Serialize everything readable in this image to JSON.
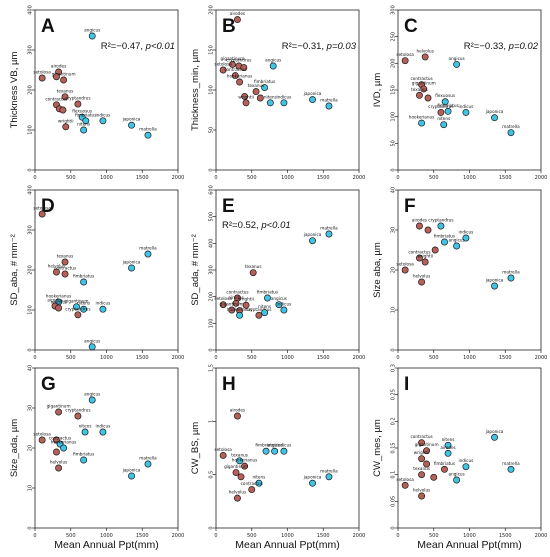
{
  "colors": {
    "group_brown": "#b5615a",
    "group_cyan": "#3fc4e6",
    "stroke": "#1a1a1a"
  },
  "chart_data": [
    {
      "type": "scatter",
      "letter": "A",
      "ylabel": "Thickness VB, µm",
      "xlabel": "",
      "xlim": [
        0,
        2000
      ],
      "ylim": [
        0,
        400
      ],
      "xticks": [
        0,
        500,
        1000,
        1500,
        2000
      ],
      "yticks": [
        0,
        100,
        200,
        300,
        400
      ],
      "annotation": {
        "r2": "R²=−0.47",
        "p": "p<0.01"
      },
      "points": [
        {
          "x": 800,
          "y": 335,
          "g": "cyan",
          "label": "angicus"
        },
        {
          "x": 330,
          "y": 245,
          "g": "brown",
          "label": "airodes"
        },
        {
          "x": 400,
          "y": 225,
          "g": "brown",
          "label": "gigantinum"
        },
        {
          "x": 100,
          "y": 230,
          "g": "brown",
          "label": "setolosa"
        },
        {
          "x": 300,
          "y": 233,
          "g": "brown",
          "label": ""
        },
        {
          "x": 420,
          "y": 183,
          "g": "brown",
          "label": "texanus"
        },
        {
          "x": 600,
          "y": 165,
          "g": "brown",
          "label": "cryptandrus"
        },
        {
          "x": 300,
          "y": 163,
          "g": "brown",
          "label": "contractus"
        },
        {
          "x": 340,
          "y": 153,
          "g": "brown",
          "label": ""
        },
        {
          "x": 390,
          "y": 150,
          "g": "brown",
          "label": ""
        },
        {
          "x": 660,
          "y": 132,
          "g": "cyan",
          "label": "flexuosus"
        },
        {
          "x": 710,
          "y": 123,
          "g": "cyan",
          "label": "fimbriatus"
        },
        {
          "x": 950,
          "y": 123,
          "g": "cyan",
          "label": "indicus"
        },
        {
          "x": 680,
          "y": 100,
          "g": "cyan",
          "label": "nitens"
        },
        {
          "x": 430,
          "y": 108,
          "g": "brown",
          "label": "wrightii"
        },
        {
          "x": 1350,
          "y": 112,
          "g": "cyan",
          "label": "japonica"
        },
        {
          "x": 1580,
          "y": 87,
          "g": "cyan",
          "label": "matrella"
        }
      ]
    },
    {
      "type": "scatter",
      "letter": "B",
      "ylabel": "Thickness_min, µm",
      "xlabel": "",
      "xlim": [
        0,
        2000
      ],
      "ylim": [
        0,
        200
      ],
      "xticks": [
        0,
        500,
        1000,
        1500,
        2000
      ],
      "yticks": [
        0,
        50,
        100,
        150,
        200
      ],
      "annotation": {
        "r2": "R²=−0.31",
        "p": "p=0.03"
      },
      "points": [
        {
          "x": 300,
          "y": 188,
          "g": "brown",
          "label": "airodes"
        },
        {
          "x": 230,
          "y": 132,
          "g": "brown",
          "label": "gigantinum"
        },
        {
          "x": 320,
          "y": 130,
          "g": "brown",
          "label": "cryptandrus"
        },
        {
          "x": 390,
          "y": 128,
          "g": "brown",
          "label": ""
        },
        {
          "x": 100,
          "y": 125,
          "g": "brown",
          "label": "setolosa"
        },
        {
          "x": 800,
          "y": 130,
          "g": "cyan",
          "label": "angicus"
        },
        {
          "x": 270,
          "y": 118,
          "g": "brown",
          "label": "contractus"
        },
        {
          "x": 330,
          "y": 110,
          "g": "brown",
          "label": "hookerianus"
        },
        {
          "x": 680,
          "y": 103,
          "g": "cyan",
          "label": "fimbriatus"
        },
        {
          "x": 400,
          "y": 92,
          "g": "brown",
          "label": ""
        },
        {
          "x": 560,
          "y": 98,
          "g": "brown",
          "label": "texanus"
        },
        {
          "x": 620,
          "y": 90,
          "g": "brown",
          "label": ""
        },
        {
          "x": 760,
          "y": 84,
          "g": "cyan",
          "label": "nitens"
        },
        {
          "x": 950,
          "y": 84,
          "g": "cyan",
          "label": "indicus"
        },
        {
          "x": 420,
          "y": 84,
          "g": "brown",
          "label": "wrightii"
        },
        {
          "x": 1350,
          "y": 88,
          "g": "cyan",
          "label": "japonica"
        },
        {
          "x": 1580,
          "y": 80,
          "g": "cyan",
          "label": "matrella"
        }
      ]
    },
    {
      "type": "scatter",
      "letter": "C",
      "ylabel": "IVD, µm",
      "xlabel": "",
      "xlim": [
        0,
        2000
      ],
      "ylim": [
        0,
        300
      ],
      "xticks": [
        0,
        500,
        1000,
        1500,
        2000
      ],
      "yticks": [
        0,
        50,
        100,
        150,
        200,
        250,
        300
      ],
      "annotation": {
        "r2": "R²=−0.33",
        "p": "p=0.02"
      },
      "points": [
        {
          "x": 100,
          "y": 205,
          "g": "brown",
          "label": "setolosa"
        },
        {
          "x": 380,
          "y": 212,
          "g": "brown",
          "label": "helvolus"
        },
        {
          "x": 820,
          "y": 198,
          "g": "cyan",
          "label": "angicus"
        },
        {
          "x": 330,
          "y": 160,
          "g": "brown",
          "label": "contractus"
        },
        {
          "x": 360,
          "y": 152,
          "g": "brown",
          "label": "gigantinum"
        },
        {
          "x": 300,
          "y": 140,
          "g": "brown",
          "label": "texanus"
        },
        {
          "x": 420,
          "y": 135,
          "g": "brown",
          "label": ""
        },
        {
          "x": 660,
          "y": 128,
          "g": "cyan",
          "label": "flexuosus"
        },
        {
          "x": 600,
          "y": 108,
          "g": "brown",
          "label": "cryptandrus"
        },
        {
          "x": 700,
          "y": 110,
          "g": "cyan",
          "label": "fimbriatus"
        },
        {
          "x": 950,
          "y": 108,
          "g": "cyan",
          "label": "indicus"
        },
        {
          "x": 330,
          "y": 88,
          "g": "cyan",
          "label": "hookerianus"
        },
        {
          "x": 640,
          "y": 85,
          "g": "cyan",
          "label": "nitens"
        },
        {
          "x": 1350,
          "y": 98,
          "g": "cyan",
          "label": "japonica"
        },
        {
          "x": 1580,
          "y": 70,
          "g": "cyan",
          "label": "matrella"
        }
      ]
    },
    {
      "type": "scatter",
      "letter": "D",
      "ylabel": "SD_aba, # mm⁻²",
      "xlabel": "",
      "xlim": [
        0,
        2000
      ],
      "ylim": [
        0,
        400
      ],
      "xticks": [
        0,
        500,
        1000,
        1500,
        2000
      ],
      "yticks": [
        0,
        100,
        200,
        300,
        400
      ],
      "annotation": null,
      "points": [
        {
          "x": 100,
          "y": 340,
          "g": "brown",
          "label": "setolosa"
        },
        {
          "x": 420,
          "y": 220,
          "g": "brown",
          "label": "texanus"
        },
        {
          "x": 1580,
          "y": 240,
          "g": "cyan",
          "label": "matrella"
        },
        {
          "x": 1350,
          "y": 205,
          "g": "cyan",
          "label": "japonica"
        },
        {
          "x": 300,
          "y": 195,
          "g": "brown",
          "label": "helvolus"
        },
        {
          "x": 420,
          "y": 190,
          "g": "brown",
          "label": "contractus"
        },
        {
          "x": 680,
          "y": 170,
          "g": "cyan",
          "label": "fimbriatus"
        },
        {
          "x": 330,
          "y": 120,
          "g": "cyan",
          "label": "hookerianus"
        },
        {
          "x": 280,
          "y": 110,
          "g": "brown",
          "label": "airodes"
        },
        {
          "x": 330,
          "y": 105,
          "g": "brown",
          "label": "wrightii"
        },
        {
          "x": 580,
          "y": 108,
          "g": "cyan",
          "label": "gigantinum"
        },
        {
          "x": 680,
          "y": 102,
          "g": "cyan",
          "label": "nitens"
        },
        {
          "x": 950,
          "y": 102,
          "g": "cyan",
          "label": "indicus"
        },
        {
          "x": 600,
          "y": 88,
          "g": "brown",
          "label": "cryptandrus"
        },
        {
          "x": 800,
          "y": 8,
          "g": "cyan",
          "label": "angicus"
        }
      ]
    },
    {
      "type": "scatter",
      "letter": "E",
      "ylabel": "SD_ada, # mm⁻²",
      "xlabel": "",
      "xlim": [
        0,
        2000
      ],
      "ylim": [
        0,
        600
      ],
      "xticks": [
        0,
        500,
        1000,
        1500,
        2000
      ],
      "yticks": [
        0,
        100,
        200,
        300,
        400,
        500,
        600
      ],
      "annotation": {
        "r2": "R²=0.52",
        "p": "p<0.01"
      },
      "points": [
        {
          "x": 1580,
          "y": 435,
          "g": "cyan",
          "label": "matrella"
        },
        {
          "x": 1350,
          "y": 410,
          "g": "cyan",
          "label": "japonica"
        },
        {
          "x": 520,
          "y": 290,
          "g": "brown",
          "label": "texanus"
        },
        {
          "x": 300,
          "y": 195,
          "g": "brown",
          "label": "contractus"
        },
        {
          "x": 720,
          "y": 195,
          "g": "cyan",
          "label": "fimbriatus"
        },
        {
          "x": 880,
          "y": 170,
          "g": "cyan",
          "label": "angicus"
        },
        {
          "x": 100,
          "y": 170,
          "g": "brown",
          "label": "setolosa"
        },
        {
          "x": 280,
          "y": 175,
          "g": "brown",
          "label": "airodes"
        },
        {
          "x": 420,
          "y": 168,
          "g": "brown",
          "label": "wrightii"
        },
        {
          "x": 220,
          "y": 150,
          "g": "brown",
          "label": "gigantinum"
        },
        {
          "x": 330,
          "y": 148,
          "g": "brown",
          "label": ""
        },
        {
          "x": 600,
          "y": 130,
          "g": "brown",
          "label": "cryptandrus"
        },
        {
          "x": 680,
          "y": 140,
          "g": "cyan",
          "label": "nitens"
        },
        {
          "x": 950,
          "y": 150,
          "g": "cyan",
          "label": "indicus"
        },
        {
          "x": 330,
          "y": 130,
          "g": "cyan",
          "label": "hookerianus"
        }
      ]
    },
    {
      "type": "scatter",
      "letter": "F",
      "ylabel": "Size aba, µm",
      "xlabel": "",
      "xlim": [
        0,
        2000
      ],
      "ylim": [
        0,
        40
      ],
      "xticks": [
        0,
        500,
        1000,
        1500,
        2000
      ],
      "yticks": [
        0,
        10,
        20,
        30,
        40
      ],
      "annotation": null,
      "points": [
        {
          "x": 300,
          "y": 31,
          "g": "brown",
          "label": "airodes"
        },
        {
          "x": 600,
          "y": 31,
          "g": "cyan",
          "label": "cryptandrus"
        },
        {
          "x": 420,
          "y": 30,
          "g": "brown",
          "label": ""
        },
        {
          "x": 950,
          "y": 28,
          "g": "cyan",
          "label": "indicus"
        },
        {
          "x": 650,
          "y": 27,
          "g": "cyan",
          "label": "fimbriatus"
        },
        {
          "x": 820,
          "y": 26,
          "g": "cyan",
          "label": "angicus"
        },
        {
          "x": 520,
          "y": 25,
          "g": "brown",
          "label": ""
        },
        {
          "x": 300,
          "y": 23,
          "g": "brown",
          "label": "contractus"
        },
        {
          "x": 380,
          "y": 22,
          "g": "brown",
          "label": "wrightii"
        },
        {
          "x": 100,
          "y": 20,
          "g": "brown",
          "label": "setolosa"
        },
        {
          "x": 330,
          "y": 17,
          "g": "brown",
          "label": "helvolus"
        },
        {
          "x": 1580,
          "y": 18,
          "g": "cyan",
          "label": "matrella"
        },
        {
          "x": 1350,
          "y": 16,
          "g": "cyan",
          "label": "japonica"
        }
      ]
    },
    {
      "type": "scatter",
      "letter": "G",
      "ylabel": "Size_ada, µm",
      "xlabel": "",
      "xlim": [
        0,
        2000
      ],
      "ylim": [
        0,
        40
      ],
      "xticks": [
        0,
        500,
        1000,
        1500,
        2000
      ],
      "yticks": [
        0,
        10,
        20,
        30,
        40
      ],
      "annotation": null,
      "points": [
        {
          "x": 800,
          "y": 32,
          "g": "cyan",
          "label": "angicus"
        },
        {
          "x": 330,
          "y": 29,
          "g": "brown",
          "label": "gigantinum"
        },
        {
          "x": 600,
          "y": 28,
          "g": "brown",
          "label": "cryptandrus"
        },
        {
          "x": 700,
          "y": 24,
          "g": "cyan",
          "label": "nitens"
        },
        {
          "x": 950,
          "y": 24,
          "g": "cyan",
          "label": "indicus"
        },
        {
          "x": 100,
          "y": 22,
          "g": "brown",
          "label": "setolosa"
        },
        {
          "x": 300,
          "y": 22,
          "g": "brown",
          "label": ""
        },
        {
          "x": 350,
          "y": 21,
          "g": "cyan",
          "label": "contractus"
        },
        {
          "x": 400,
          "y": 20,
          "g": "cyan",
          "label": "hookerianus"
        },
        {
          "x": 300,
          "y": 19,
          "g": "brown",
          "label": ""
        },
        {
          "x": 680,
          "y": 17,
          "g": "cyan",
          "label": "fimbriatus"
        },
        {
          "x": 1580,
          "y": 16,
          "g": "cyan",
          "label": "matrella"
        },
        {
          "x": 330,
          "y": 15,
          "g": "brown",
          "label": "helvolus"
        },
        {
          "x": 1350,
          "y": 13,
          "g": "cyan",
          "label": "japonica"
        }
      ]
    },
    {
      "type": "scatter",
      "letter": "H",
      "ylabel": "CW_BS, µm",
      "xlabel": "Mean Annual Ppt(mm)",
      "xlim": [
        0,
        2000
      ],
      "ylim": [
        0,
        1.5
      ],
      "xticks": [
        0,
        500,
        1000,
        1500,
        2000
      ],
      "yticks": [
        0,
        0.5,
        1.0,
        1.5
      ],
      "annotation": null,
      "points": [
        {
          "x": 300,
          "y": 1.05,
          "g": "brown",
          "label": "airodes"
        },
        {
          "x": 700,
          "y": 0.72,
          "g": "cyan",
          "label": "fimbriatus"
        },
        {
          "x": 820,
          "y": 0.72,
          "g": "cyan",
          "label": "angicus"
        },
        {
          "x": 950,
          "y": 0.72,
          "g": "cyan",
          "label": "indicus"
        },
        {
          "x": 100,
          "y": 0.68,
          "g": "brown",
          "label": "setolosa"
        },
        {
          "x": 330,
          "y": 0.63,
          "g": "cyan",
          "label": "texanus"
        },
        {
          "x": 400,
          "y": 0.58,
          "g": "brown",
          "label": "hookerianus"
        },
        {
          "x": 280,
          "y": 0.52,
          "g": "brown",
          "label": "gigantinum"
        },
        {
          "x": 350,
          "y": 0.48,
          "g": "brown",
          "label": ""
        },
        {
          "x": 1580,
          "y": 0.48,
          "g": "cyan",
          "label": "matrella"
        },
        {
          "x": 1350,
          "y": 0.42,
          "g": "cyan",
          "label": "japonica"
        },
        {
          "x": 600,
          "y": 0.42,
          "g": "cyan",
          "label": "nitens"
        },
        {
          "x": 500,
          "y": 0.36,
          "g": "brown",
          "label": "contractus"
        },
        {
          "x": 300,
          "y": 0.28,
          "g": "brown",
          "label": "helvolus"
        }
      ]
    },
    {
      "type": "scatter",
      "letter": "I",
      "ylabel": "CW_mes, µm",
      "xlabel": "",
      "xlim": [
        0,
        2000
      ],
      "ylim": [
        0,
        0.3
      ],
      "xticks": [
        0,
        500,
        1000,
        1500,
        2000
      ],
      "yticks": [
        0,
        0.05,
        0.1,
        0.15,
        0.2,
        0.25,
        0.3
      ],
      "annotation": null,
      "points": [
        {
          "x": 1350,
          "y": 0.17,
          "g": "cyan",
          "label": "japonica"
        },
        {
          "x": 330,
          "y": 0.16,
          "g": "brown",
          "label": "contractus"
        },
        {
          "x": 700,
          "y": 0.155,
          "g": "cyan",
          "label": "nitens"
        },
        {
          "x": 400,
          "y": 0.145,
          "g": "brown",
          "label": "gigantinum"
        },
        {
          "x": 700,
          "y": 0.14,
          "g": "cyan",
          "label": "airodes"
        },
        {
          "x": 330,
          "y": 0.13,
          "g": "brown",
          "label": "wrightii"
        },
        {
          "x": 400,
          "y": 0.12,
          "g": "brown",
          "label": ""
        },
        {
          "x": 650,
          "y": 0.11,
          "g": "brown",
          "label": "fimbriatus"
        },
        {
          "x": 950,
          "y": 0.115,
          "g": "cyan",
          "label": "indicus"
        },
        {
          "x": 330,
          "y": 0.1,
          "g": "brown",
          "label": "texanus"
        },
        {
          "x": 500,
          "y": 0.095,
          "g": "brown",
          "label": ""
        },
        {
          "x": 820,
          "y": 0.09,
          "g": "cyan",
          "label": "angicus"
        },
        {
          "x": 1580,
          "y": 0.11,
          "g": "cyan",
          "label": "matrella"
        },
        {
          "x": 100,
          "y": 0.08,
          "g": "brown",
          "label": "setolosa"
        },
        {
          "x": 330,
          "y": 0.06,
          "g": "brown",
          "label": "helvolus"
        }
      ]
    }
  ]
}
